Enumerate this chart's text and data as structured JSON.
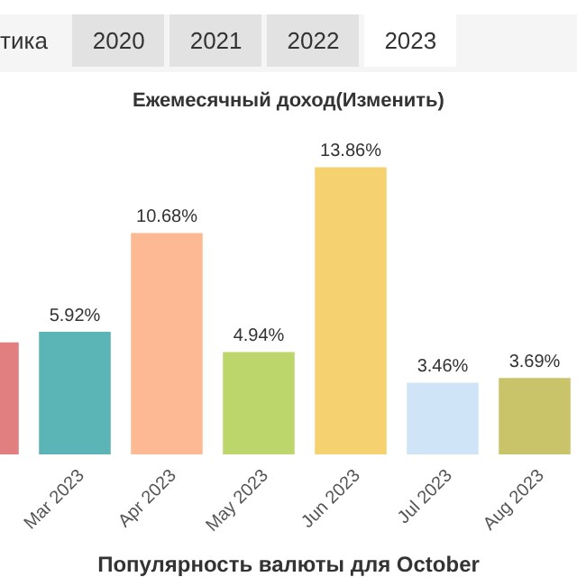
{
  "chart_data": {
    "type": "bar",
    "title": "Ежемесячный доход(Изменить)",
    "annotations": [
      "тика",
      "2020",
      "2021",
      "2022",
      "2023",
      "Популярность валюты для October"
    ],
    "categories": [
      null,
      "Mar 2023",
      "Apr 2023",
      "May 2023",
      "Jun 2023",
      "Jul 2023",
      "Aug 2023"
    ],
    "values": [
      5.4,
      5.92,
      10.68,
      4.94,
      13.86,
      3.46,
      3.69
    ],
    "value_labels": [
      null,
      "5.92%",
      "10.68%",
      "4.94%",
      "13.86%",
      "3.46%",
      "3.69%"
    ],
    "colors": [
      "#e07e80",
      "#5bb5b6",
      "#fdb994",
      "#bcd66b",
      "#f6d16f",
      "#cfe5f7",
      "#c9c46a"
    ],
    "tick_labels": "x"
  }
}
